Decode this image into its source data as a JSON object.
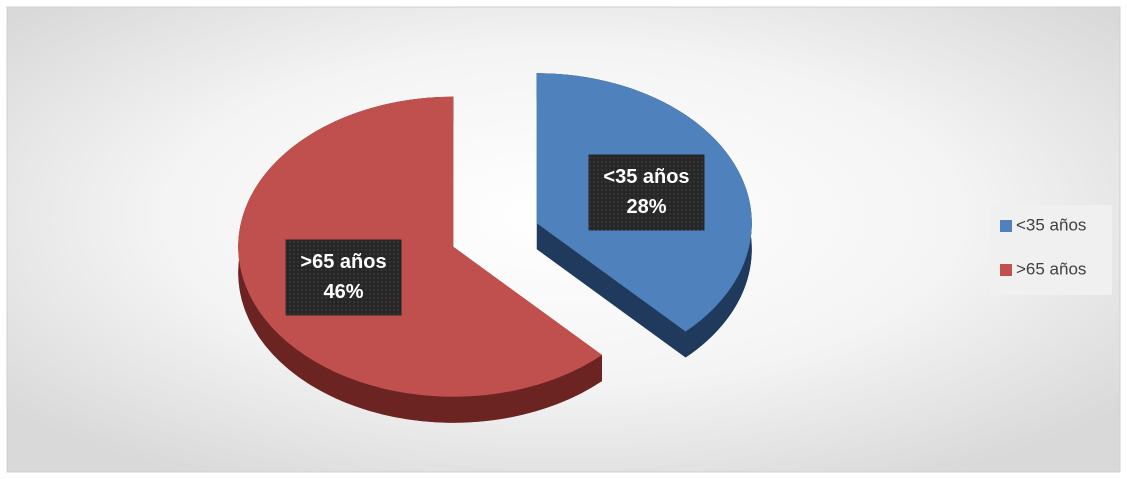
{
  "chart_data": {
    "type": "pie",
    "categories": [
      "<35 años",
      ">65 años"
    ],
    "values": [
      28,
      46
    ],
    "value_labels": [
      "28%",
      "46%"
    ],
    "colors": [
      "#4f81bd",
      "#c0504d"
    ],
    "side_colors": [
      "#1f3a5c",
      "#6b2422"
    ],
    "legend": "right"
  }
}
